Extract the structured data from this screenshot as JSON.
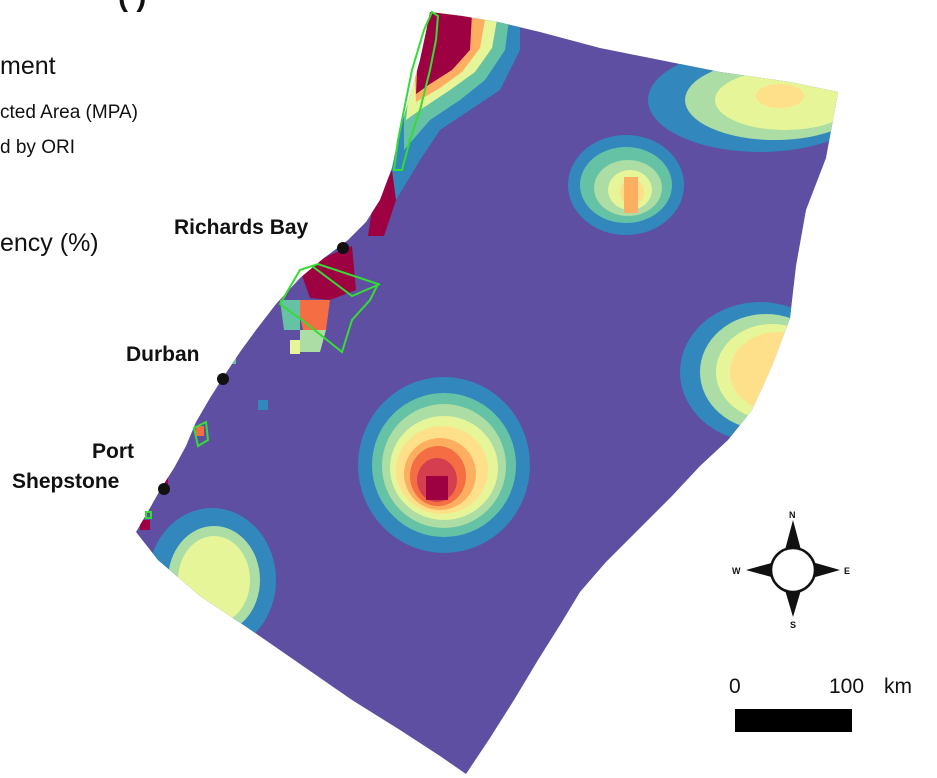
{
  "legend": {
    "title_fragment": "(            )",
    "heading": "ment",
    "items": [
      "cted Area (MPA)",
      "d by ORI"
    ],
    "frequency_label": "ency (%)"
  },
  "cities": [
    {
      "name": "Richards Bay"
    },
    {
      "name": "Durban"
    },
    {
      "name": "Port",
      "line2": "Shepstone"
    }
  ],
  "compass": {
    "n": "N",
    "s": "S",
    "e": "E",
    "w": "W"
  },
  "scale_bar": {
    "start": "0",
    "end": "100",
    "unit": "km"
  },
  "colors": {
    "ocean": "#5e4fa2",
    "ramp": [
      "#3288bd",
      "#66c2a5",
      "#abdda4",
      "#e6f598",
      "#fee08b",
      "#fdae61",
      "#f46d43",
      "#d53e4f",
      "#9e0142"
    ],
    "mpa_outline": "#33dd33"
  },
  "hotspots": [
    {
      "name": "north-coast-hotspot",
      "peak": 9
    },
    {
      "name": "upper-right-hotspot",
      "peak": 4
    },
    {
      "name": "central-north-hotspot",
      "peak": 6
    },
    {
      "name": "east-edge-hotspot",
      "peak": 4
    },
    {
      "name": "central-south-hotspot",
      "peak": 9
    },
    {
      "name": "southwest-hotspot",
      "peak": 4
    }
  ]
}
